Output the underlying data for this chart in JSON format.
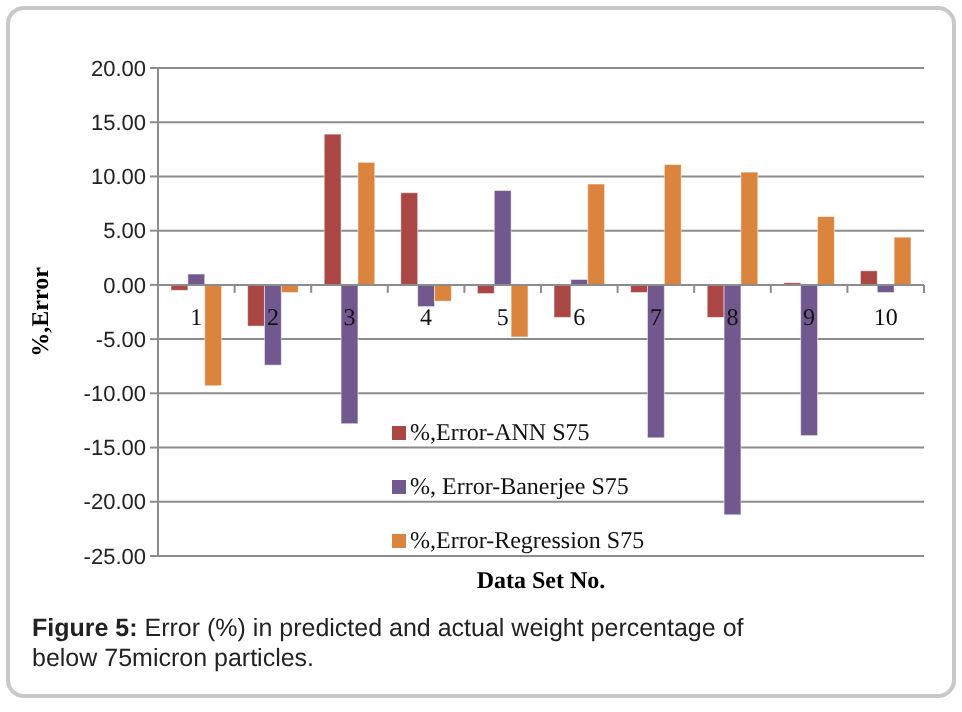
{
  "chart_data": {
    "type": "bar",
    "xlabel": "Data Set No.",
    "ylabel": "%,Error",
    "categories": [
      "1",
      "2",
      "3",
      "4",
      "5",
      "6",
      "7",
      "8",
      "9",
      "10"
    ],
    "series": [
      {
        "name": "%,Error-ANN S75",
        "color": "#aa4643",
        "values": [
          -0.5,
          -3.8,
          13.9,
          8.5,
          -0.8,
          -3.0,
          -0.7,
          -3.0,
          0.2,
          1.3
        ]
      },
      {
        "name": "%, Error-Banerjee S75",
        "color": "#71588f",
        "values": [
          1.0,
          -7.4,
          -12.8,
          -2.0,
          8.7,
          0.5,
          -14.1,
          -21.2,
          -13.9,
          -0.7
        ]
      },
      {
        "name": "%,Error-Regression S75",
        "color": "#db843d",
        "values": [
          -9.3,
          -0.7,
          11.3,
          -1.5,
          -4.8,
          9.3,
          11.1,
          10.4,
          6.3,
          4.4
        ]
      }
    ],
    "ylim": [
      -25,
      20
    ],
    "yticks": [
      {
        "value": -25,
        "label": "-25.00"
      },
      {
        "value": -20,
        "label": "-20.00"
      },
      {
        "value": -15,
        "label": "-15.00"
      },
      {
        "value": -10,
        "label": "-10.00"
      },
      {
        "value": -5,
        "label": "-5.00"
      },
      {
        "value": 0,
        "label": "0.00"
      },
      {
        "value": 5,
        "label": "5.00"
      },
      {
        "value": 10,
        "label": "10.00"
      },
      {
        "value": 15,
        "label": "15.00"
      },
      {
        "value": 20,
        "label": "20.00"
      }
    ],
    "grid": "y",
    "legend": "bottom",
    "annotations": [
      "Figure 5: Error (%) in predicted and actual weight percentage of below 75micron particles."
    ]
  }
}
